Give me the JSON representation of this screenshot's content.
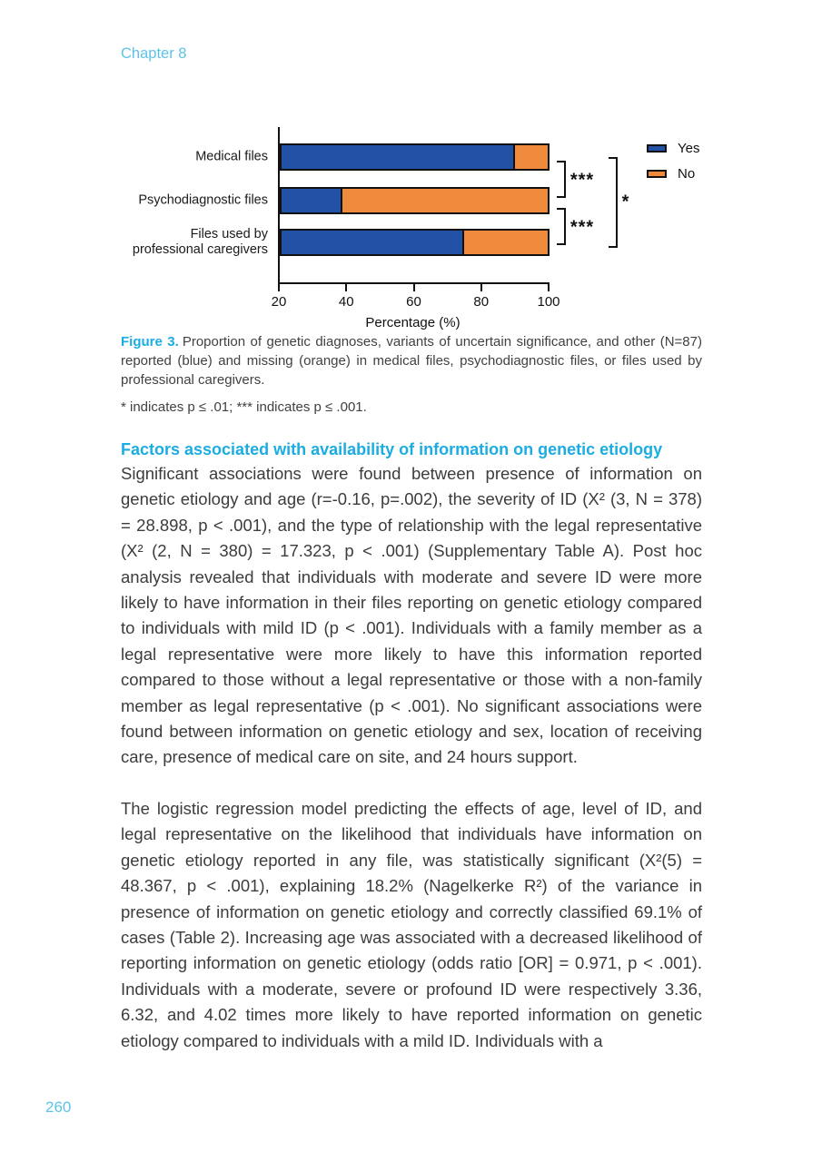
{
  "page": {
    "chapter_label": "Chapter 8",
    "page_number": "260"
  },
  "figure": {
    "caption_label": "Figure 3.",
    "caption_text": "Proportion of genetic diagnoses, variants of uncertain significance, and other (N=87) reported (blue) and missing (orange) in medical files, psychodiagnostic files, or files used by professional caregivers.",
    "caption_note": "* indicates p ≤ .01; *** indicates p ≤ .001."
  },
  "chart_data": {
    "type": "bar",
    "orientation": "horizontal",
    "stacked": true,
    "categories": [
      "Medical files",
      "Psychodiagnostic files",
      "Files used by\nprofessional caregivers"
    ],
    "series": [
      {
        "name": "Yes",
        "color": "#2351a5",
        "values": [
          89.7,
          38.5,
          74.7
        ]
      },
      {
        "name": "No",
        "color": "#ef8a3d",
        "values": [
          10.3,
          61.5,
          25.3
        ]
      }
    ],
    "xlabel": "Percentage (%)",
    "xlim": [
      20,
      100
    ],
    "xticks": [
      20,
      40,
      60,
      80,
      100
    ],
    "grid": false,
    "legend_position": "right",
    "annotations": [
      {
        "between": [
          0,
          1
        ],
        "label": "***"
      },
      {
        "between": [
          1,
          2
        ],
        "label": "***"
      },
      {
        "between": [
          0,
          2
        ],
        "label": "*"
      }
    ]
  },
  "section": {
    "heading": "Factors associated with availability of information on genetic etiology",
    "paragraphs": [
      "Significant associations were found between presence of information on genetic etiology and age (r=-0.16, p=.002), the severity of ID (X² (3, N = 378) = 28.898, p < .001), and the type of relationship with the legal representative (X² (2, N = 380) = 17.323, p < .001) (Supplementary Table A). Post hoc analysis revealed that individuals with moderate and severe ID were more likely to have information in their files reporting on genetic etiology compared to individuals with mild ID (p < .001). Individuals with a family member as a legal representative were more likely to have this information reported compared to those without a legal representative or those with a non-family member as legal representative (p < .001). No significant associations were found between information on genetic etiology and sex, location of receiving care, presence of medical care on site, and 24 hours support.",
      "The logistic regression model predicting the effects of age, level of ID, and legal representative on the likelihood that individuals have information on genetic etiology reported in any file, was statistically significant (X²(5) = 48.367, p < .001), explaining 18.2% (Nagelkerke R²) of the variance in presence of information on genetic etiology and correctly classified 69.1% of cases (Table 2). Increasing age was associated with a decreased likelihood of reporting information on genetic etiology (odds ratio [OR] = 0.971, p < .001). Individuals with a moderate, severe or profound ID were respectively 3.36, 6.32, and 4.02 times more likely to have reported information on genetic etiology compared to individuals with a mild ID. Individuals with a"
    ]
  },
  "colors": {
    "accent_cyan": "#1bade2",
    "accent_light_blue": "#5cc3e8",
    "bar_blue": "#2351a5",
    "bar_orange": "#ef8a3d",
    "body_text": "#3c3c3c"
  }
}
